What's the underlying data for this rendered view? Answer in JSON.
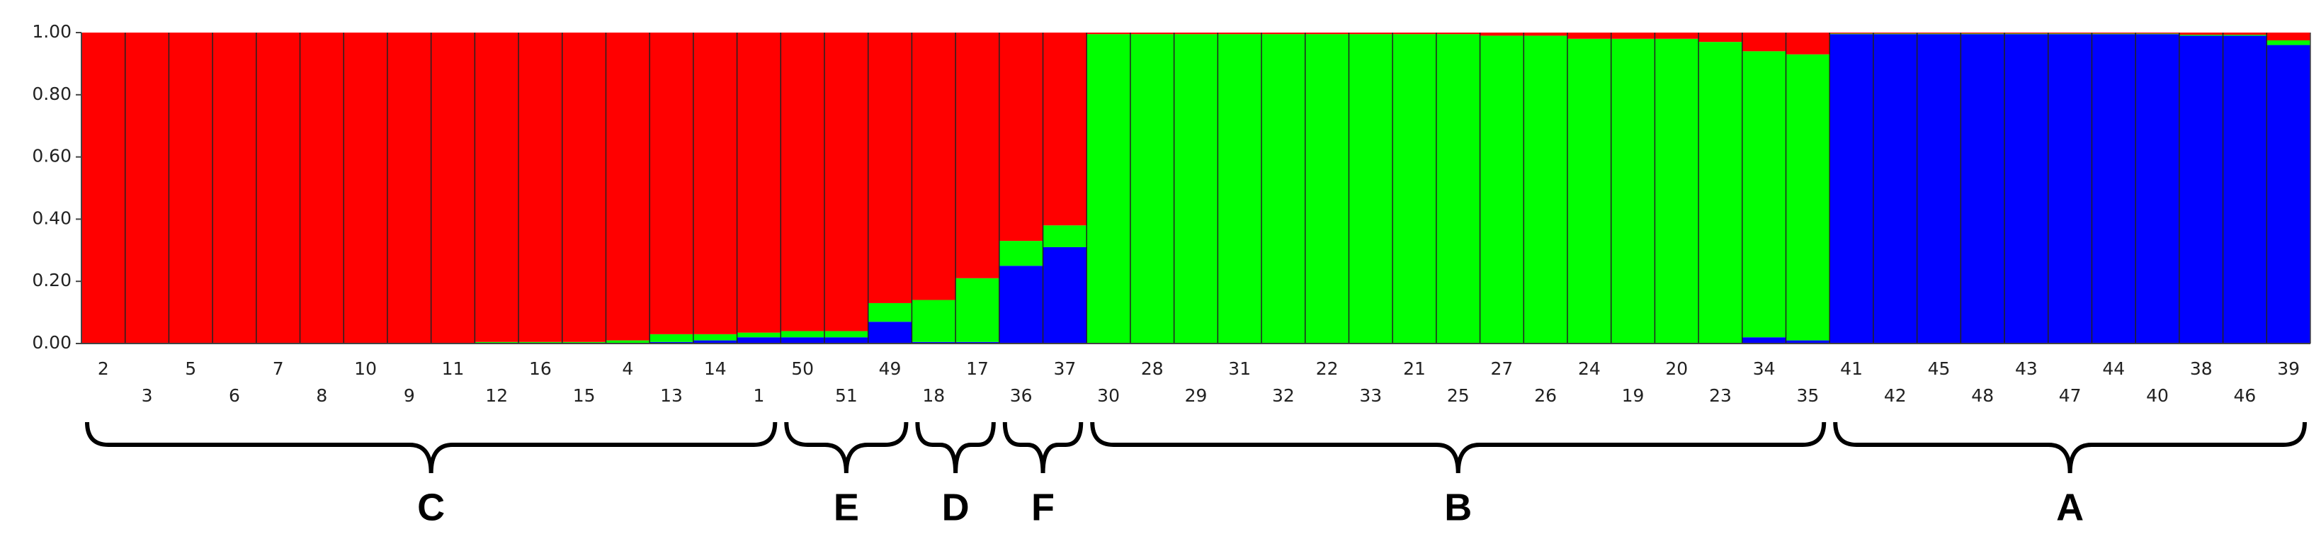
{
  "chart_data": {
    "type": "stacked_bar",
    "categories": [
      "2",
      "3",
      "5",
      "6",
      "7",
      "8",
      "10",
      "9",
      "11",
      "12",
      "16",
      "15",
      "4",
      "13",
      "14",
      "1",
      "50",
      "51",
      "49",
      "18",
      "17",
      "36",
      "37",
      "30",
      "28",
      "29",
      "31",
      "32",
      "22",
      "33",
      "21",
      "25",
      "27",
      "26",
      "24",
      "19",
      "20",
      "23",
      "34",
      "35",
      "41",
      "42",
      "45",
      "48",
      "43",
      "47",
      "44",
      "40",
      "38",
      "46",
      "39"
    ],
    "series": [
      {
        "color": "#0000ff",
        "values": [
          0,
          0,
          0,
          0,
          0,
          0,
          0,
          0,
          0,
          0,
          0,
          0,
          0.002,
          0.005,
          0.01,
          0.02,
          0.02,
          0.02,
          0.07,
          0.005,
          0.005,
          0.25,
          0.31,
          0,
          0,
          0,
          0,
          0,
          0,
          0,
          0,
          0,
          0,
          0,
          0,
          0,
          0,
          0,
          0.02,
          0.01,
          0.995,
          0.995,
          0.995,
          0.995,
          0.995,
          0.995,
          0.995,
          0.995,
          0.99,
          0.99,
          0.96
        ]
      },
      {
        "color": "#00ff00",
        "values": [
          0,
          0,
          0,
          0,
          0,
          0,
          0,
          0,
          0,
          0.005,
          0.005,
          0.005,
          0.008,
          0.025,
          0.02,
          0.015,
          0.02,
          0.02,
          0.06,
          0.135,
          0.205,
          0.08,
          0.07,
          0.995,
          0.995,
          0.995,
          0.995,
          0.995,
          0.995,
          0.995,
          0.995,
          0.995,
          0.99,
          0.99,
          0.98,
          0.98,
          0.98,
          0.97,
          0.92,
          0.92,
          0.002,
          0.002,
          0.002,
          0.002,
          0.002,
          0.002,
          0.002,
          0.002,
          0.003,
          0.003,
          0.015
        ]
      },
      {
        "color": "#ff0000",
        "values": [
          1,
          1,
          1,
          1,
          1,
          1,
          1,
          1,
          1,
          0.995,
          0.995,
          0.995,
          0.99,
          0.97,
          0.97,
          0.965,
          0.96,
          0.96,
          0.87,
          0.86,
          0.79,
          0.67,
          0.62,
          0.005,
          0.005,
          0.005,
          0.005,
          0.005,
          0.005,
          0.005,
          0.005,
          0.005,
          0.01,
          0.01,
          0.02,
          0.02,
          0.02,
          0.03,
          0.06,
          0.07,
          0.003,
          0.003,
          0.003,
          0.003,
          0.003,
          0.003,
          0.003,
          0.003,
          0.007,
          0.007,
          0.025
        ]
      }
    ],
    "ylim": [
      0,
      1
    ],
    "yticks": [
      {
        "value": 0,
        "label": "0.00"
      },
      {
        "value": 0.2,
        "label": "0.20"
      },
      {
        "value": 0.4,
        "label": "0.40"
      },
      {
        "value": 0.6,
        "label": "0.60"
      },
      {
        "value": 0.8,
        "label": "0.80"
      },
      {
        "value": 1,
        "label": "1.00"
      }
    ],
    "groups": [
      "C",
      "E",
      "D",
      "F",
      "B",
      "A"
    ]
  }
}
